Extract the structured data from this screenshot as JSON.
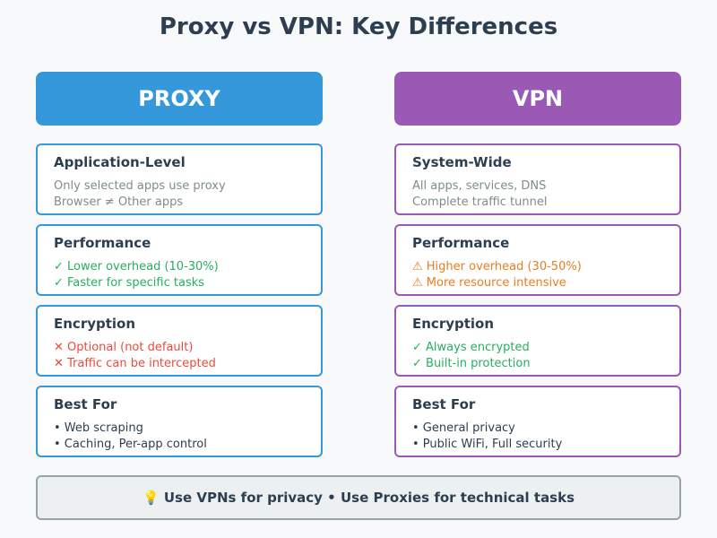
{
  "title": "Proxy vs VPN: Key Differences",
  "columns": [
    {
      "header": "PROXY",
      "color": "#3498db",
      "cards": [
        {
          "title": "Application-Level",
          "line_color": "#7f8c8d",
          "lines": [
            "Only selected apps use proxy",
            "Browser ≠ Other apps"
          ]
        },
        {
          "title": "Performance",
          "line_color": "#27ae60",
          "lines": [
            "✓ Lower overhead (10-30%)",
            "✓ Faster for specific tasks"
          ]
        },
        {
          "title": "Encryption",
          "line_color": "#e74c3c",
          "lines": [
            "✕ Optional (not default)",
            "✕ Traffic can be intercepted"
          ]
        },
        {
          "title": "Best For",
          "line_color": "#2c3e50",
          "lines": [
            "• Web scraping",
            "• Caching, Per-app control"
          ]
        }
      ]
    },
    {
      "header": "VPN",
      "color": "#9b59b6",
      "cards": [
        {
          "title": "System-Wide",
          "line_color": "#7f8c8d",
          "lines": [
            "All apps, services, DNS",
            "Complete traffic tunnel"
          ]
        },
        {
          "title": "Performance",
          "line_color": "#e67e22",
          "lines": [
            "⚠ Higher overhead (30-50%)",
            "⚠ More resource intensive"
          ]
        },
        {
          "title": "Encryption",
          "line_color": "#27ae60",
          "lines": [
            "✓ Always encrypted",
            "✓ Built-in protection"
          ]
        },
        {
          "title": "Best For",
          "line_color": "#2c3e50",
          "lines": [
            "• General privacy",
            "• Public WiFi, Full security"
          ]
        }
      ]
    }
  ],
  "footer": "💡 Use VPNs for privacy • Use Proxies for technical tasks"
}
